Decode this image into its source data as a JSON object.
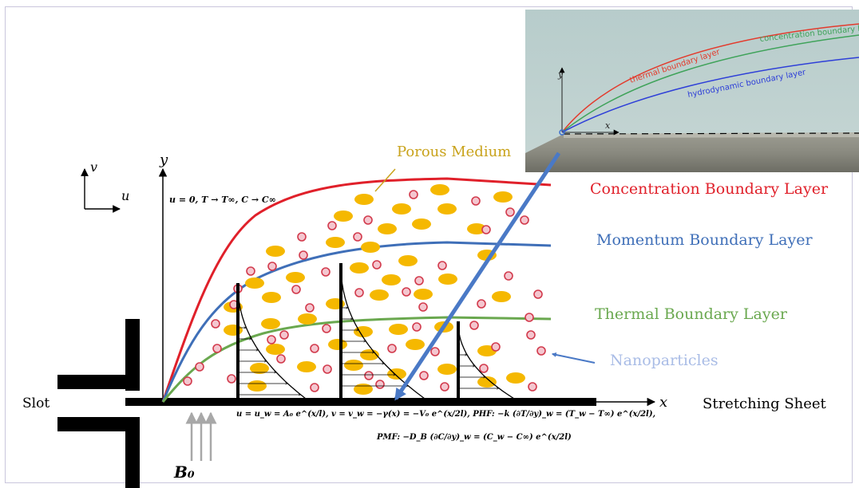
{
  "labels": {
    "concentration": "Concentration Boundary Layer",
    "momentum": "Momentum Boundary Layer",
    "thermal": "Thermal Boundary Layer",
    "nanoparticles": "Nanoparticles",
    "porous": "Porous Medium",
    "slot": "Slot",
    "sheet": "Stretching Sheet",
    "b0": "B₀",
    "axis_y": "y",
    "axis_x": "x",
    "axis_v": "v",
    "axis_u": "u"
  },
  "equations": {
    "far": "u = 0,  T → T∞,  C → C∞",
    "wall": "u = u_w = A₀ e^(x/l),  v = v_w = −γ(x) = −V₀ e^(x/2l),  PHF: −k (∂T/∂y)_w = (T_w − T∞) e^(x/2l),",
    "pmf": "PMF: −D_B (∂C/∂y)_w = (C_w − C∞) e^(x/2l)"
  },
  "inset": {
    "concentration": "concentration boundary layer",
    "thermal": "thermal boundary layer",
    "hydrodynamic": "hydrodynamic boundary layer",
    "axis_y": "y",
    "axis_x": "x"
  },
  "colors": {
    "concentration": "#e0202a",
    "momentum": "#3f6fb8",
    "thermal": "#6aa84f",
    "nanoparticle": "#a9bce6",
    "porous": "#c9a31c",
    "particle_fill": "#f5b800",
    "dot_fill": "#f4c6cf",
    "dot_stroke": "#d23a4c"
  }
}
